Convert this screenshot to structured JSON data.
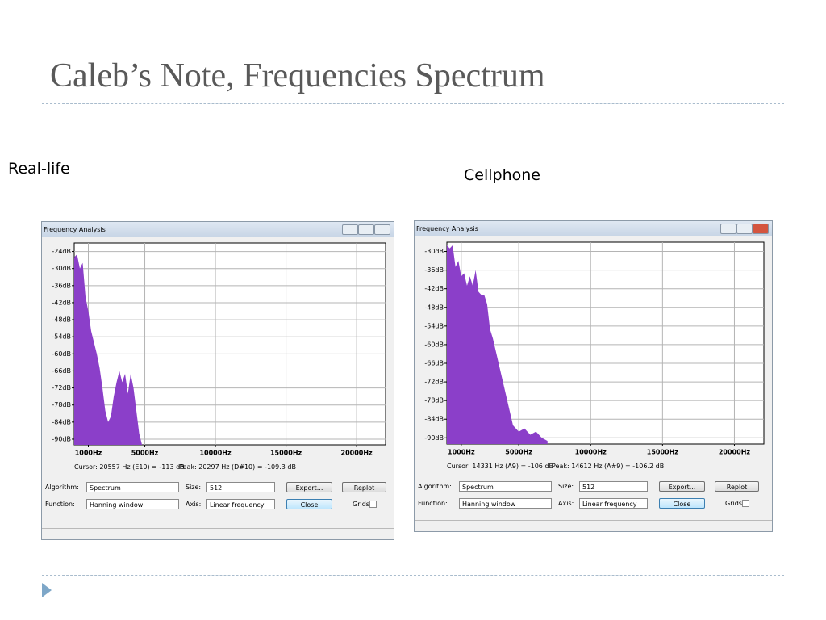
{
  "slide": {
    "title": "Caleb’s Note, Frequencies Spectrum"
  },
  "panels": [
    {
      "caption": "Real-life",
      "window_title": "Frequency Analysis",
      "chart": {
        "type": "area",
        "color": "#8b3fc9",
        "grid": true,
        "xlim": [
          0,
          22050
        ],
        "ylim": [
          -92,
          -21
        ],
        "xticks": [
          {
            "value": 1000,
            "label": "1000Hz"
          },
          {
            "value": 5000,
            "label": "5000Hz"
          },
          {
            "value": 10000,
            "label": "10000Hz"
          },
          {
            "value": 15000,
            "label": "15000Hz"
          },
          {
            "value": 20000,
            "label": "20000Hz"
          }
        ],
        "yticks": [
          {
            "value": -24,
            "label": "-24dB"
          },
          {
            "value": -30,
            "label": "-30dB"
          },
          {
            "value": -36,
            "label": "-36dB"
          },
          {
            "value": -42,
            "label": "-42dB"
          },
          {
            "value": -48,
            "label": "-48dB"
          },
          {
            "value": -54,
            "label": "-54dB"
          },
          {
            "value": -60,
            "label": "-60dB"
          },
          {
            "value": -66,
            "label": "-66dB"
          },
          {
            "value": -72,
            "label": "-72dB"
          },
          {
            "value": -78,
            "label": "-78dB"
          },
          {
            "value": -84,
            "label": "-84dB"
          },
          {
            "value": -90,
            "label": "-90dB"
          }
        ],
        "x": [
          0,
          200,
          400,
          600,
          800,
          1000,
          1200,
          1400,
          1600,
          1800,
          2000,
          2200,
          2400,
          2600,
          2800,
          3000,
          3200,
          3400,
          3600,
          3800,
          4000,
          4200,
          4400,
          4600,
          4800
        ],
        "values": [
          -26,
          -25,
          -30,
          -28,
          -40,
          -45,
          -52,
          -56,
          -60,
          -65,
          -72,
          -80,
          -84,
          -82,
          -75,
          -70,
          -66,
          -70,
          -67,
          -74,
          -67,
          -72,
          -80,
          -88,
          -92
        ]
      },
      "cursor": "Cursor: 20557 Hz (E10) = -113 dB",
      "peak": "Peak: 20297 Hz (D#10) = -109.3 dB",
      "controls": {
        "algorithm_label": "Algorithm:",
        "algorithm": "Spectrum",
        "size_label": "Size:",
        "size": "512",
        "export": "Export...",
        "replot": "Replot",
        "function_label": "Function:",
        "function": "Hanning window",
        "axis_label": "Axis:",
        "axis": "Linear frequency",
        "close": "Close",
        "grids": "Grids"
      }
    },
    {
      "caption": "Cellphone",
      "window_title": "Frequency Analysis",
      "chart": {
        "type": "area",
        "color": "#8b3fc9",
        "grid": true,
        "xlim": [
          0,
          22050
        ],
        "ylim": [
          -92,
          -27
        ],
        "xticks": [
          {
            "value": 1000,
            "label": "1000Hz"
          },
          {
            "value": 5000,
            "label": "5000Hz"
          },
          {
            "value": 10000,
            "label": "10000Hz"
          },
          {
            "value": 15000,
            "label": "15000Hz"
          },
          {
            "value": 20000,
            "label": "20000Hz"
          }
        ],
        "yticks": [
          {
            "value": -30,
            "label": "-30dB"
          },
          {
            "value": -36,
            "label": "-36dB"
          },
          {
            "value": -42,
            "label": "-42dB"
          },
          {
            "value": -48,
            "label": "-48dB"
          },
          {
            "value": -54,
            "label": "-54dB"
          },
          {
            "value": -60,
            "label": "-60dB"
          },
          {
            "value": -66,
            "label": "-66dB"
          },
          {
            "value": -72,
            "label": "-72dB"
          },
          {
            "value": -78,
            "label": "-78dB"
          },
          {
            "value": -84,
            "label": "-84dB"
          },
          {
            "value": -90,
            "label": "-90dB"
          }
        ],
        "x": [
          0,
          200,
          400,
          600,
          800,
          1000,
          1200,
          1400,
          1600,
          1800,
          2000,
          2200,
          2400,
          2600,
          2800,
          3000,
          3200,
          3400,
          3600,
          3800,
          4000,
          4200,
          4400,
          4600,
          4800,
          5000,
          5400,
          5800,
          6200,
          6600,
          7000
        ],
        "values": [
          -28,
          -29,
          -28,
          -35,
          -33,
          -38,
          -37,
          -41,
          -38,
          -41,
          -36,
          -43,
          -44,
          -44,
          -47,
          -55,
          -58,
          -62,
          -66,
          -70,
          -74,
          -78,
          -82,
          -86,
          -87,
          -88,
          -87,
          -89,
          -88,
          -90,
          -91
        ]
      },
      "cursor": "Cursor: 14331 Hz (A9) = -106 dB",
      "peak": "Peak: 14612 Hz (A#9) = -106.2 dB",
      "controls": {
        "algorithm_label": "Algorithm:",
        "algorithm": "Spectrum",
        "size_label": "Size:",
        "size": "512",
        "export": "Export...",
        "replot": "Replot",
        "function_label": "Function:",
        "function": "Hanning window",
        "axis_label": "Axis:",
        "axis": "Linear frequency",
        "close": "Close",
        "grids": "Grids"
      }
    }
  ]
}
